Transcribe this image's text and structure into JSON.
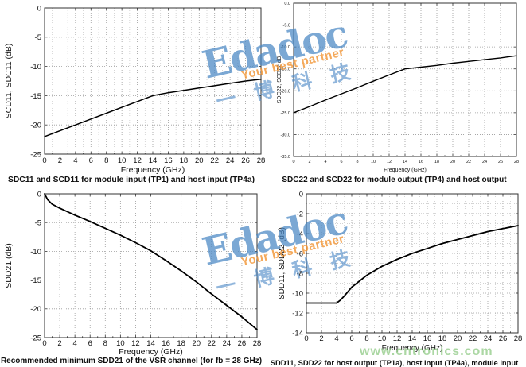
{
  "watermarks": {
    "brand": "Edadoc",
    "tagline": "Your best partner",
    "chinese": "一博科技",
    "url": "www.cntronics.com",
    "brand_color": "#4886c4",
    "tagline_color": "#f29637",
    "url_color": "#96cd8c"
  },
  "chart_data": [
    {
      "id": "sdc11-scd11",
      "type": "line",
      "caption": "SDC11 and SCD11 for module input (TP1) and host input (TP4a)",
      "xlabel": "Frequency (GHz)",
      "ylabel": "SCD11, SDC11 (dB)",
      "xlim": [
        0,
        28
      ],
      "ylim": [
        -25,
        0
      ],
      "xticks": [
        0,
        2,
        4,
        6,
        8,
        10,
        12,
        14,
        16,
        18,
        20,
        22,
        24,
        26,
        28
      ],
      "xtick_labels": [
        "0",
        "2",
        "4",
        "6",
        "8",
        "10",
        "12",
        "14",
        "16",
        "18",
        "20",
        "22",
        "24",
        "26",
        "28"
      ],
      "yticks": [
        0,
        -5,
        -10,
        -15,
        -20,
        -25
      ],
      "ytick_labels": [
        "0",
        "-5",
        "-10",
        "-15",
        "-20",
        "-25"
      ],
      "grid": true,
      "line_color": "#000000",
      "points": [
        [
          0,
          -22
        ],
        [
          2,
          -21
        ],
        [
          4,
          -20
        ],
        [
          6,
          -19
        ],
        [
          8,
          -18
        ],
        [
          10,
          -17
        ],
        [
          12,
          -16
        ],
        [
          14,
          -15
        ],
        [
          16,
          -14.5
        ],
        [
          18,
          -14.1
        ],
        [
          20,
          -13.7
        ],
        [
          22,
          -13.3
        ],
        [
          24,
          -12.9
        ],
        [
          26,
          -12.5
        ],
        [
          28,
          -12.2
        ]
      ]
    },
    {
      "id": "sdc22-scd22",
      "type": "line",
      "caption": "SDC22 and SCD22 for module output (TP4) and host output",
      "xlabel": "Frequency (GHz)",
      "ylabel": "SDC22, SCD22 dB",
      "xlim": [
        0,
        28
      ],
      "ylim": [
        -35,
        0
      ],
      "xticks": [
        0,
        2,
        4,
        6,
        8,
        10,
        12,
        14,
        16,
        18,
        20,
        22,
        24,
        26,
        28
      ],
      "xtick_labels": [
        "0",
        "2",
        "4",
        "6",
        "8",
        "10",
        "12",
        "14",
        "16",
        "18",
        "20",
        "22",
        "24",
        "26",
        "28"
      ],
      "yticks": [
        0,
        -5,
        -10,
        -15,
        -20,
        -25,
        -30,
        -35
      ],
      "ytick_labels": [
        "0.0",
        "-5.0",
        "-10.0",
        "-15.0",
        "-20.0",
        "-25.0",
        "-30.0",
        "-35.0"
      ],
      "grid": true,
      "line_color": "#000000",
      "points": [
        [
          0,
          -25
        ],
        [
          2,
          -23.6
        ],
        [
          4,
          -22.1
        ],
        [
          6,
          -20.7
        ],
        [
          8,
          -19.3
        ],
        [
          10,
          -17.8
        ],
        [
          12,
          -16.4
        ],
        [
          14,
          -15
        ],
        [
          16,
          -14.6
        ],
        [
          18,
          -14.2
        ],
        [
          20,
          -13.7
        ],
        [
          22,
          -13.3
        ],
        [
          24,
          -12.9
        ],
        [
          26,
          -12.5
        ],
        [
          28,
          -12
        ]
      ]
    },
    {
      "id": "sdd21",
      "type": "line",
      "caption": "Recommended minimum SDD21 of the VSR channel (for fb = 28 GHz)",
      "xlabel": "Frequency (GHz)",
      "ylabel": "SDD21 (dB)",
      "xlim": [
        0,
        28
      ],
      "ylim": [
        -25,
        0
      ],
      "xticks": [
        0,
        2,
        4,
        6,
        8,
        10,
        12,
        14,
        16,
        18,
        20,
        22,
        24,
        26,
        28
      ],
      "xtick_labels": [
        "0",
        "2",
        "4",
        "6",
        "8",
        "10",
        "12",
        "14",
        "16",
        "18",
        "20",
        "22",
        "24",
        "26",
        "28"
      ],
      "yticks": [
        0,
        -5,
        -10,
        -15,
        -20,
        -25
      ],
      "ytick_labels": [
        "0",
        "-5",
        "-10",
        "-15",
        "-20",
        "-25"
      ],
      "grid": true,
      "line_color": "#000000",
      "points": [
        [
          0,
          0
        ],
        [
          0.4,
          -1
        ],
        [
          1,
          -1.8
        ],
        [
          2,
          -2.5
        ],
        [
          3,
          -3.1
        ],
        [
          4,
          -3.7
        ],
        [
          6,
          -4.8
        ],
        [
          8,
          -6
        ],
        [
          10,
          -7.2
        ],
        [
          12,
          -8.5
        ],
        [
          14,
          -9.9
        ],
        [
          16,
          -11.6
        ],
        [
          18,
          -13.4
        ],
        [
          20,
          -15.3
        ],
        [
          22,
          -17.4
        ],
        [
          24,
          -19.4
        ],
        [
          26,
          -21.4
        ],
        [
          28,
          -23.6
        ]
      ]
    },
    {
      "id": "sdd11-sdd22",
      "type": "line",
      "caption": "SDD11, SDD22 for host output (TP1a), host input (TP4a), module input",
      "xlabel": "Frequency (GHz)",
      "ylabel": "SDD11, SDD22 (dB)",
      "xlim": [
        0,
        28
      ],
      "ylim": [
        -14,
        0
      ],
      "xticks": [
        0,
        2,
        4,
        6,
        8,
        10,
        12,
        14,
        16,
        18,
        20,
        22,
        24,
        26,
        28
      ],
      "xtick_labels": [
        "0",
        "2",
        "4",
        "6",
        "8",
        "10",
        "12",
        "14",
        "16",
        "18",
        "20",
        "22",
        "24",
        "26",
        "28"
      ],
      "yticks": [
        0,
        -2,
        -4,
        -6,
        -8,
        -10,
        -12,
        -14
      ],
      "ytick_labels": [
        "0",
        "-2",
        "-4",
        "-6",
        "-8",
        "-10",
        "-12",
        "-14"
      ],
      "grid": true,
      "line_color": "#000000",
      "points": [
        [
          0,
          -11
        ],
        [
          4,
          -11
        ],
        [
          4.5,
          -10.7
        ],
        [
          5,
          -10.3
        ],
        [
          6,
          -9.4
        ],
        [
          7,
          -8.8
        ],
        [
          8,
          -8.2
        ],
        [
          10,
          -7.3
        ],
        [
          12,
          -6.6
        ],
        [
          14,
          -6
        ],
        [
          16,
          -5.5
        ],
        [
          18,
          -5
        ],
        [
          20,
          -4.6
        ],
        [
          22,
          -4.2
        ],
        [
          24,
          -3.8
        ],
        [
          26,
          -3.5
        ],
        [
          28,
          -3.2
        ]
      ]
    }
  ]
}
